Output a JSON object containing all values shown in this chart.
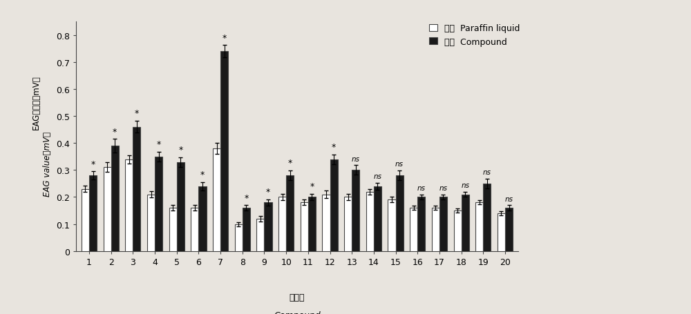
{
  "categories": [
    "1",
    "2",
    "3",
    "4",
    "5",
    "6",
    "7",
    "8",
    "9",
    "10",
    "11",
    "12",
    "13",
    "14",
    "15",
    "16",
    "17",
    "18",
    "19",
    "20"
  ],
  "control_values": [
    0.23,
    0.31,
    0.34,
    0.21,
    0.16,
    0.16,
    0.38,
    0.1,
    0.12,
    0.2,
    0.18,
    0.21,
    0.2,
    0.22,
    0.19,
    0.16,
    0.16,
    0.15,
    0.18,
    0.14
  ],
  "control_errors": [
    0.012,
    0.018,
    0.015,
    0.012,
    0.01,
    0.01,
    0.02,
    0.008,
    0.01,
    0.012,
    0.01,
    0.015,
    0.012,
    0.01,
    0.01,
    0.008,
    0.008,
    0.008,
    0.008,
    0.008
  ],
  "compound_values": [
    0.28,
    0.39,
    0.46,
    0.35,
    0.33,
    0.24,
    0.74,
    0.16,
    0.18,
    0.28,
    0.2,
    0.34,
    0.3,
    0.24,
    0.28,
    0.2,
    0.2,
    0.21,
    0.25,
    0.16
  ],
  "compound_errors": [
    0.015,
    0.025,
    0.022,
    0.018,
    0.018,
    0.015,
    0.022,
    0.01,
    0.012,
    0.018,
    0.012,
    0.018,
    0.018,
    0.012,
    0.018,
    0.01,
    0.01,
    0.01,
    0.018,
    0.01
  ],
  "significance": [
    "*",
    "*",
    "*",
    "*",
    "*",
    "*",
    "*",
    "*",
    "*",
    "*",
    "*",
    "*",
    "ns",
    "ns",
    "ns",
    "ns",
    "ns",
    "ns",
    "ns",
    "ns"
  ],
  "ylim": [
    0,
    0.85
  ],
  "yticks": [
    0,
    0.1,
    0.2,
    0.3,
    0.4,
    0.5,
    0.6,
    0.7,
    0.8
  ],
  "ylabel_line1": "EAG反应値（mV）",
  "ylabel_line2": "EAG value（mV）",
  "xlabel_line1": "化合物",
  "xlabel_line2": "Compound",
  "legend_entries": [
    {
      "label_cn": "对照",
      "label_en": "Paraffin liquid",
      "color": "#ffffff"
    },
    {
      "label_cn": "处理",
      "label_en": "Compound",
      "color": "#1a1a1a"
    }
  ],
  "control_color": "#ffffff",
  "compound_color": "#1a1a1a",
  "bar_edge_color": "#444444",
  "bar_width": 0.35,
  "background_color": "#e8e4de",
  "fig_background": "#e8e4de"
}
